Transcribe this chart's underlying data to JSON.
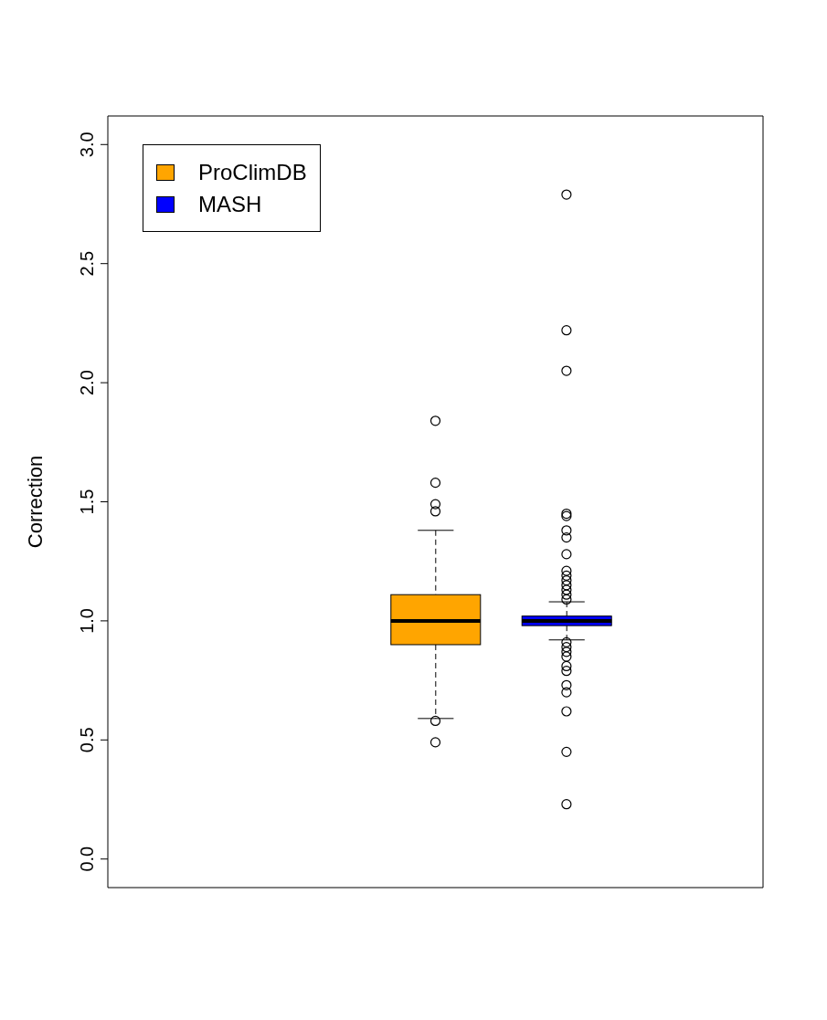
{
  "chart_data": {
    "type": "box",
    "ylabel": "Correction",
    "categories": [
      null,
      null,
      null,
      null,
      null
    ],
    "series": [
      {
        "name": "ProClimDB",
        "color": "#ffa500",
        "boxes": [
          null,
          null,
          {
            "low": 0.59,
            "q1": 0.9,
            "median": 1.0,
            "q3": 1.11,
            "high": 1.38,
            "outliers": [
              1.84,
              1.58,
              1.49,
              1.46,
              0.58,
              0.49
            ]
          },
          null,
          null
        ]
      },
      {
        "name": "MASH",
        "color": "#0000ff",
        "boxes": [
          null,
          null,
          null,
          {
            "low": 0.92,
            "q1": 0.98,
            "median": 1.0,
            "q3": 1.02,
            "high": 1.08,
            "outliers": [
              2.79,
              2.22,
              2.05,
              1.45,
              1.44,
              1.38,
              1.35,
              1.28,
              1.21,
              1.19,
              1.17,
              1.15,
              1.13,
              1.11,
              1.09,
              0.91,
              0.89,
              0.87,
              0.85,
              0.81,
              0.79,
              0.73,
              0.7,
              0.62,
              0.45,
              0.23
            ]
          },
          null
        ]
      }
    ],
    "ylim": [
      -0.12,
      3.12
    ],
    "yticks": [
      {
        "value": 0,
        "label": "0.0"
      },
      0.5,
      {
        "value": 1,
        "label": "1.0"
      },
      1.5,
      {
        "value": 2,
        "label": "2.0"
      },
      2.5,
      {
        "value": 3,
        "label": "3.0"
      }
    ],
    "grid": false,
    "legend": "top left",
    "tick_labels": "y"
  }
}
